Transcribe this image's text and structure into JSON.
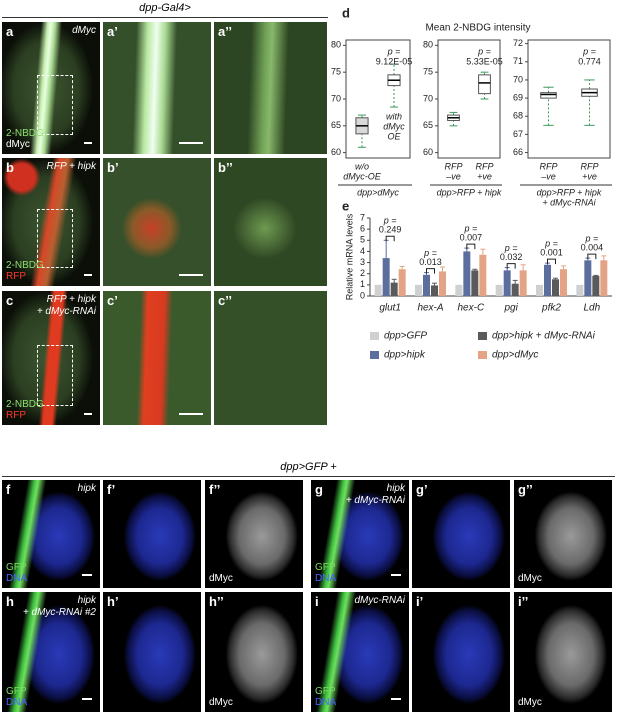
{
  "top_images": {
    "header": "dpp-Gal4>",
    "rows": [
      {
        "labels": [
          "a",
          "a’",
          "a’’"
        ],
        "condition": [
          "dMyc"
        ],
        "stains": [
          "2-NBDG",
          "dMyc"
        ]
      },
      {
        "labels": [
          "b",
          "b’",
          "b’’"
        ],
        "condition": [
          "RFP + hipk"
        ],
        "stains": [
          "2-NBDG",
          "RFP"
        ]
      },
      {
        "labels": [
          "c",
          "c’",
          "c’’"
        ],
        "condition": [
          "RFP + hipk",
          "+ dMyc-RNAi"
        ],
        "stains": [
          "2-NBDG",
          "RFP"
        ]
      }
    ]
  },
  "bottom_images": {
    "header": "dpp>GFP +",
    "panels": [
      {
        "labels": [
          "f",
          "f’",
          "f’’"
        ],
        "condition": [
          "hipk"
        ],
        "stains": [
          "GFP",
          "DNA"
        ],
        "third_stain": "dMyc"
      },
      {
        "labels": [
          "g",
          "g’",
          "g’’"
        ],
        "condition": [
          "hipk",
          "+ dMyc-RNAi"
        ],
        "stains": [
          "GFP",
          "DNA"
        ],
        "third_stain": "dMyc"
      },
      {
        "labels": [
          "h",
          "h’",
          "h’’"
        ],
        "condition": [
          "hipk",
          "+ dMyc-RNAi #2"
        ],
        "stains": [
          "GFP",
          "DNA"
        ],
        "third_stain": "dMyc"
      },
      {
        "labels": [
          "i",
          "i’",
          "i’’"
        ],
        "condition": [
          "dMyc-RNAi"
        ],
        "stains": [
          "GFP",
          "DNA"
        ],
        "third_stain": "dMyc"
      }
    ]
  },
  "chart_data": [
    {
      "type": "box",
      "panel_label": "d",
      "title": "Mean 2-NBDG intensity",
      "categories": [
        [
          "w/o",
          "dMyc-OE"
        ],
        [
          "with",
          "dMyc",
          "OE"
        ]
      ],
      "boxes": [
        {
          "min": 61,
          "q1": 63.5,
          "median": 65,
          "q3": 66.5,
          "max": 67
        },
        {
          "min": 68.5,
          "q1": 72.5,
          "median": 73.5,
          "q3": 74.5,
          "max": 76.5
        }
      ],
      "box_colors": [
        "#d9d9d9",
        "#ffffff"
      ],
      "whisker_color": "#3a9a5a",
      "annotation": [
        "p =",
        "9.12E-05"
      ],
      "xlabel": [
        "dpp>dMyc"
      ],
      "ylim": [
        59,
        81
      ],
      "yticks": [
        60,
        65,
        70,
        75,
        80
      ]
    },
    {
      "type": "box",
      "categories": [
        [
          "RFP",
          "–ve"
        ],
        [
          "RFP",
          "+ve"
        ]
      ],
      "boxes": [
        {
          "min": 65,
          "q1": 66,
          "median": 66.5,
          "q3": 67,
          "max": 67.5
        },
        {
          "min": 70,
          "q1": 71,
          "median": 73,
          "q3": 74.5,
          "max": 75
        }
      ],
      "box_colors": [
        "#ffffff",
        "#ffffff"
      ],
      "whisker_color": "#3a9a5a",
      "annotation": [
        "p =",
        "5.33E-05"
      ],
      "xlabel": [
        "dpp>RFP + hipk"
      ],
      "ylim": [
        59,
        81
      ],
      "yticks": [
        60,
        65,
        70,
        75,
        80
      ]
    },
    {
      "type": "box",
      "categories": [
        [
          "RFP",
          "–ve"
        ],
        [
          "RFP",
          "+ve"
        ]
      ],
      "boxes": [
        {
          "min": 67.5,
          "q1": 69,
          "median": 69.2,
          "q3": 69.3,
          "max": 69.6
        },
        {
          "min": 67.5,
          "q1": 69.1,
          "median": 69.3,
          "q3": 69.5,
          "max": 70
        }
      ],
      "box_colors": [
        "#ffffff",
        "#ffffff"
      ],
      "whisker_color": "#3a9a5a",
      "annotation": [
        "p =",
        "0.774"
      ],
      "xlabel": [
        "dpp>RFP + hipk",
        "+ dMyc-RNAi"
      ],
      "ylim": [
        65.7,
        72.2
      ],
      "yticks": [
        66,
        67,
        68,
        69,
        70,
        71,
        72
      ]
    },
    {
      "type": "bar",
      "panel_label": "e",
      "ylabel": "Relative mRNA levels",
      "categories": [
        "glut1",
        "hex-A",
        "hex-C",
        "pgi",
        "pfk2",
        "Ldh"
      ],
      "series": [
        {
          "name": "dpp>GFP",
          "color": "#d0d0d0",
          "values": [
            1,
            1,
            1,
            1,
            1,
            1
          ]
        },
        {
          "name": "dpp>hipk",
          "color": "#5b6e9e",
          "values": [
            3.4,
            1.9,
            4.0,
            2.3,
            2.8,
            3.2
          ],
          "errors": [
            1.6,
            0.2,
            0.3,
            0.25,
            0.15,
            0.2
          ]
        },
        {
          "name": "dpp>hipk + dMyc-RNAi",
          "color": "#5a5a5a",
          "values": [
            1.2,
            0.95,
            2.3,
            1.1,
            1.5,
            1.8
          ],
          "errors": [
            0.3,
            0.2,
            0.1,
            0.3,
            0.1,
            0.05
          ]
        },
        {
          "name": "dpp>dMyc",
          "color": "#e4a384",
          "values": [
            2.4,
            2.2,
            3.7,
            2.3,
            2.4,
            3.2
          ],
          "errors": [
            0.25,
            0.4,
            0.5,
            0.5,
            0.3,
            0.4
          ]
        }
      ],
      "annotations": [
        [
          "p =",
          "0.249"
        ],
        [
          "p =",
          "0.013"
        ],
        [
          "p =",
          "0.007"
        ],
        [
          "p =",
          "0.032"
        ],
        [
          "p =",
          "0.001"
        ],
        [
          "p =",
          "0.004"
        ]
      ],
      "ylim": [
        0,
        7
      ],
      "yticks": [
        0,
        1,
        2,
        3,
        4,
        5,
        6,
        7
      ]
    }
  ]
}
